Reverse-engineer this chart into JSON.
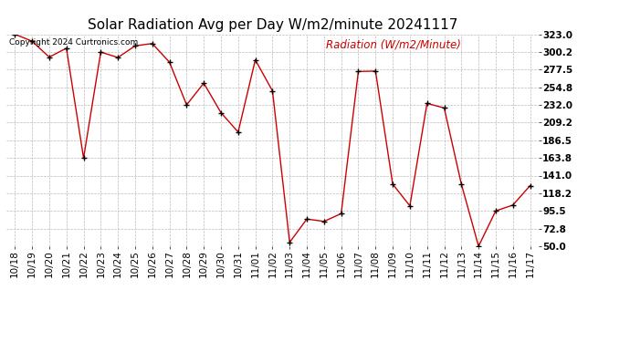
{
  "title": "Solar Radiation Avg per Day W/m2/minute 20241117",
  "copyright": "Copyright 2024 Curtronics.com",
  "legend_label": "Radiation (W/m2/Minute)",
  "dates": [
    "10/18",
    "10/19",
    "10/20",
    "10/21",
    "10/22",
    "10/23",
    "10/24",
    "10/25",
    "10/26",
    "10/27",
    "10/28",
    "10/29",
    "10/30",
    "10/31",
    "11/01",
    "11/02",
    "11/03",
    "11/04",
    "11/05",
    "11/06",
    "11/07",
    "11/08",
    "11/09",
    "11/10",
    "11/11",
    "11/12",
    "11/13",
    "11/14",
    "11/15",
    "11/16",
    "11/17"
  ],
  "values": [
    323.0,
    314.0,
    293.5,
    305.0,
    163.5,
    300.0,
    293.0,
    308.0,
    311.0,
    287.0,
    232.0,
    260.0,
    222.0,
    197.0,
    290.0,
    250.0,
    55.0,
    85.0,
    82.0,
    92.0,
    275.0,
    275.5,
    130.0,
    102.0,
    234.0,
    228.0,
    130.0,
    50.0,
    95.5,
    103.0,
    128.0
  ],
  "line_color": "#cc0000",
  "marker": "+",
  "marker_color": "#000000",
  "bg_color": "#ffffff",
  "grid_color": "#bbbbbb",
  "ylim": [
    50.0,
    323.0
  ],
  "yticks": [
    50.0,
    72.8,
    95.5,
    118.2,
    141.0,
    163.8,
    186.5,
    209.2,
    232.0,
    254.8,
    277.5,
    300.2,
    323.0
  ],
  "title_fontsize": 11,
  "tick_fontsize": 7.5,
  "legend_fontsize": 8.5,
  "copyright_fontsize": 6.5
}
